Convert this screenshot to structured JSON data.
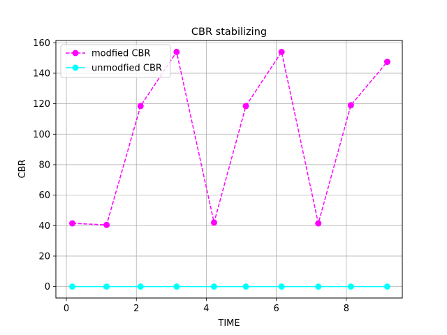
{
  "chart_data": {
    "type": "line",
    "title": "CBR stabilizing",
    "xlabel": "TIME",
    "ylabel": "CBR",
    "xlim": [
      -0.3,
      9.6
    ],
    "ylim": [
      -7.5,
      161.5
    ],
    "xticks": [
      0,
      2,
      4,
      6,
      8
    ],
    "yticks": [
      0,
      20,
      40,
      60,
      80,
      100,
      120,
      140,
      160
    ],
    "grid": true,
    "legend_position": "upper-left",
    "series": [
      {
        "name": "modfied CBR",
        "color": "#ff00ff",
        "line_style": "dashed",
        "marker": "circle",
        "x": [
          0.17,
          1.15,
          2.12,
          3.15,
          4.22,
          5.13,
          6.15,
          7.2,
          8.13,
          9.17
        ],
        "y": [
          41.5,
          40.5,
          118.5,
          154,
          42,
          118.5,
          154,
          41.5,
          119,
          147.5
        ]
      },
      {
        "name": "unmodfied CBR",
        "color": "#00ffff",
        "line_style": "solid",
        "marker": "circle",
        "x": [
          0.17,
          1.15,
          2.12,
          3.15,
          4.22,
          5.13,
          6.15,
          7.2,
          8.13,
          9.17
        ],
        "y": [
          0,
          0,
          0,
          0,
          0,
          0,
          0,
          0,
          0,
          0
        ]
      }
    ]
  }
}
